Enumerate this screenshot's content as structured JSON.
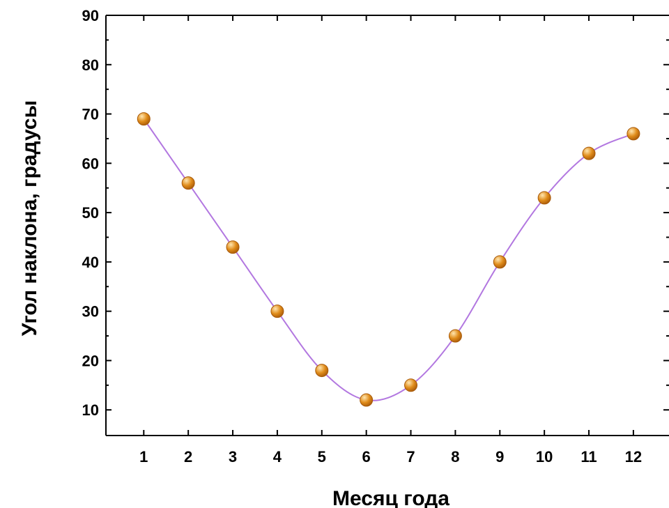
{
  "chart_data": {
    "type": "line",
    "title": "",
    "xlabel": "Месяц года",
    "ylabel": "Угол наклона, градусы",
    "x": [
      1,
      2,
      3,
      4,
      5,
      6,
      7,
      8,
      9,
      10,
      11,
      12
    ],
    "series": [
      {
        "values": [
          69,
          56,
          43,
          30,
          18,
          12,
          15,
          25,
          40,
          53,
          62,
          66
        ]
      }
    ],
    "xlim": [
      0.15,
      12.8
    ],
    "ylim": [
      4.8,
      90
    ],
    "xticks": [
      "1",
      "2",
      "3",
      "4",
      "5",
      "6",
      "7",
      "8",
      "9",
      "10",
      "11",
      "12"
    ],
    "yticks": [
      "10",
      "20",
      "30",
      "40",
      "50",
      "60",
      "70",
      "80",
      "90"
    ],
    "grid": false,
    "colors": {
      "line": "#b277e0",
      "marker": "#e08c1a",
      "marker_dark": "#a85a0a",
      "marker_highlight": "#ffe6b0"
    }
  }
}
